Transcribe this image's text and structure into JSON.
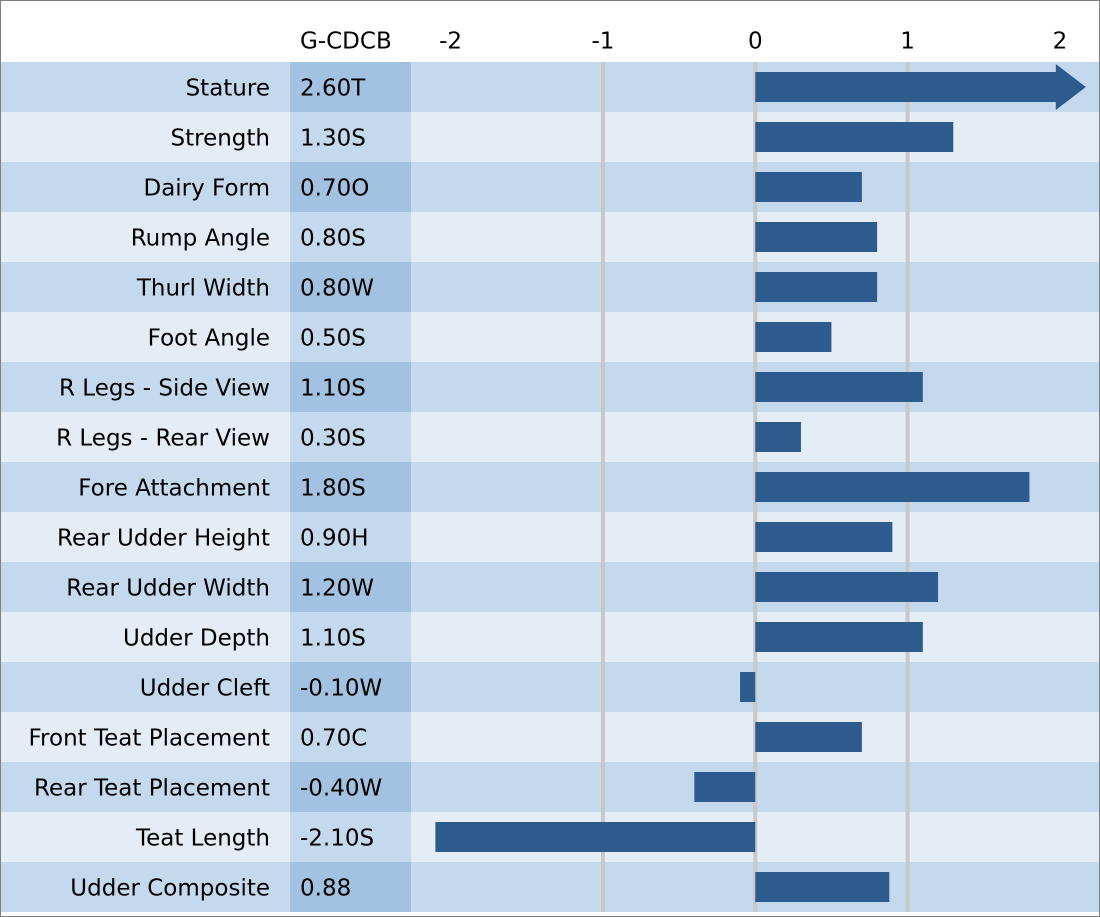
{
  "chart_data": {
    "type": "bar",
    "orientation": "horizontal",
    "value_header": "G-CDCB",
    "categories": [
      "Stature",
      "Strength",
      "Dairy Form",
      "Rump Angle",
      "Thurl Width",
      "Foot Angle",
      "R Legs - Side View",
      "R Legs - Rear View",
      "Fore Attachment",
      "Rear Udder Height",
      "Rear Udder Width",
      "Udder Depth",
      "Udder Cleft",
      "Front Teat Placement",
      "Rear Teat Placement",
      "Teat Length",
      "Udder Composite"
    ],
    "values": [
      2.6,
      1.3,
      0.7,
      0.8,
      0.8,
      0.5,
      1.1,
      0.3,
      1.8,
      0.9,
      1.2,
      1.1,
      -0.1,
      0.7,
      -0.4,
      -2.1,
      0.88
    ],
    "value_labels": [
      "2.60T",
      "1.30S",
      "0.70O",
      "0.80S",
      "0.80W",
      "0.50S",
      "1.10S",
      "0.30S",
      "1.80S",
      "0.90H",
      "1.20W",
      "1.10S",
      "-0.10W",
      "0.70C",
      "-0.40W",
      "-2.10S",
      "0.88"
    ],
    "color": "#2e5b8e",
    "xlim": [
      -2.26,
      2.25
    ],
    "xticks": [
      -2,
      -1,
      0,
      1,
      2
    ],
    "grid": true
  }
}
